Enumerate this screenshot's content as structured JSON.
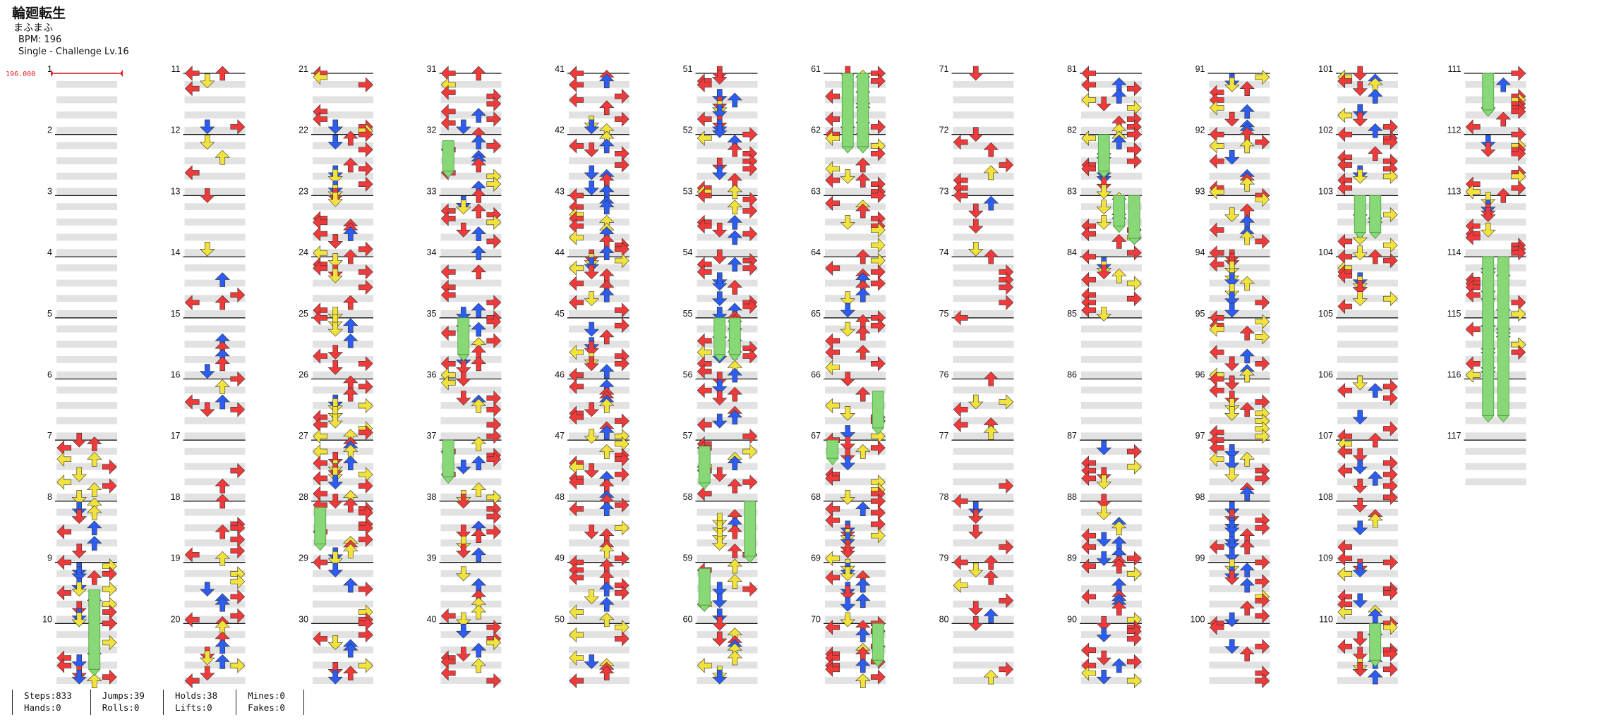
{
  "song": {
    "title": "輪廻転生",
    "artist": "まふまふ",
    "bpm_label": "BPM: 196",
    "chart_label": "Single - Challenge Lv.16"
  },
  "bpm_marker": "196.000",
  "measure_count": 117,
  "colors": {
    "red_arrow": "#ee3a3a",
    "blue_arrow": "#2c5cf0",
    "yellow_arrow": "#f2e23c",
    "hold_green": "#88d878",
    "beat_shade": "#e2e2e2",
    "bpm_marker": "#e0242a"
  },
  "icons": {
    "left": "arrow-left-icon",
    "down": "arrow-down-icon",
    "up": "arrow-up-icon",
    "right": "arrow-right-icon",
    "hold": "hold-note-icon"
  },
  "stats": [
    [
      "Steps:833",
      "Hands:0"
    ],
    [
      "Jumps:39",
      "Rolls:0"
    ],
    [
      "Holds:38",
      "Lifts:0"
    ],
    [
      "Mines:0",
      "Fakes:0"
    ]
  ]
}
